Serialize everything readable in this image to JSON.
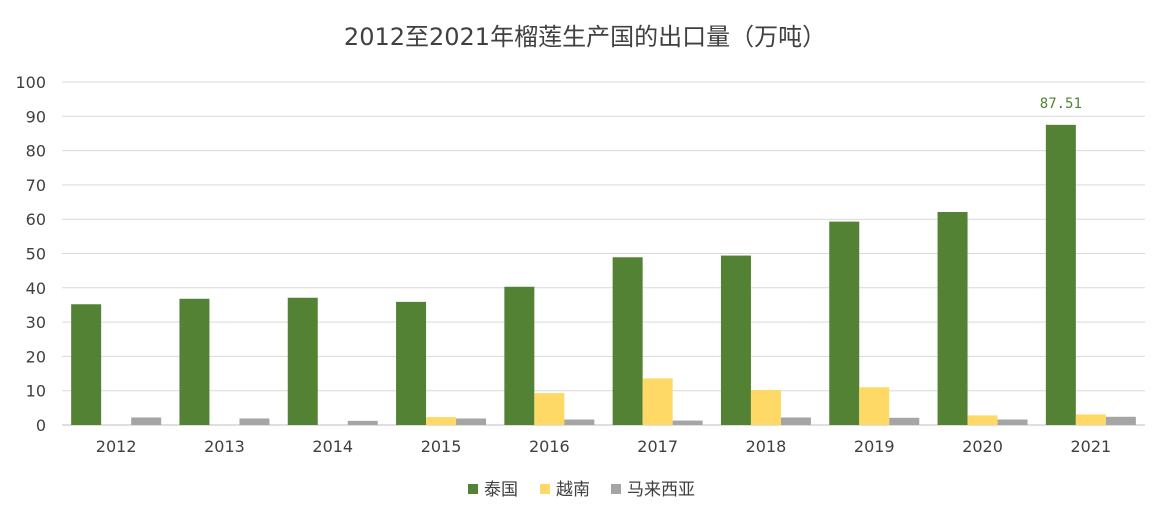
{
  "chart_data": {
    "type": "bar",
    "title": "2012至2021年榴莲生产国的出口量（万吨）",
    "categories": [
      "2012",
      "2013",
      "2014",
      "2015",
      "2016",
      "2017",
      "2018",
      "2019",
      "2020",
      "2021"
    ],
    "series": [
      {
        "name": "泰国",
        "color": "#548235",
        "values": [
          35.2,
          36.8,
          37.1,
          35.9,
          40.3,
          48.9,
          49.4,
          59.3,
          62.1,
          87.51
        ]
      },
      {
        "name": "越南",
        "color": "#FFD966",
        "values": [
          0,
          0,
          0,
          2.3,
          9.3,
          13.6,
          10.2,
          11.0,
          2.8,
          3.1
        ]
      },
      {
        "name": "马来西亚",
        "color": "#A5A5A5",
        "values": [
          2.2,
          1.9,
          1.2,
          1.9,
          1.6,
          1.3,
          2.2,
          2.1,
          1.6,
          2.4
        ]
      }
    ],
    "ylim": [
      0,
      100
    ],
    "yticks": [
      0,
      10,
      20,
      30,
      40,
      50,
      60,
      70,
      80,
      90,
      100
    ],
    "data_labels": [
      {
        "series": 0,
        "index": 9,
        "text": "87.51"
      }
    ],
    "grid": true,
    "legend_position": "bottom"
  }
}
